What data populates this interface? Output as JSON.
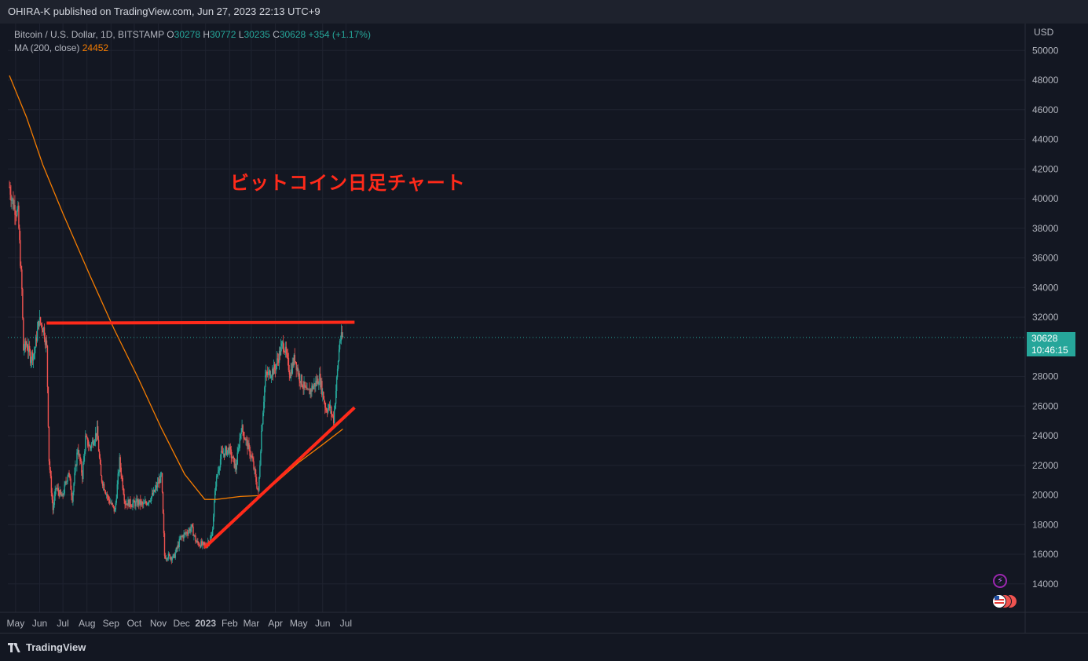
{
  "header": {
    "publisher_line": "OHIRA-K published on TradingView.com, Jun 27, 2023 22:13 UTC+9"
  },
  "legend": {
    "symbol": "Bitcoin / U.S. Dollar, 1D, BITSTAMP",
    "o_label": "O",
    "o_value": "30278",
    "h_label": "H",
    "h_value": "30772",
    "l_label": "L",
    "l_value": "30235",
    "c_label": "C",
    "c_value": "30628",
    "change": "+354 (+1.17%)",
    "ma_label": "MA (200, close)",
    "ma_value": "24452"
  },
  "annotation": {
    "text": "ビットコイン日足チャート",
    "color": "#ff2a1a"
  },
  "price_axis": {
    "currency": "USD",
    "ticks": [
      "50000",
      "48000",
      "46000",
      "44000",
      "42000",
      "40000",
      "38000",
      "36000",
      "34000",
      "32000",
      "28000",
      "26000",
      "24000",
      "22000",
      "20000",
      "18000",
      "16000",
      "14000"
    ],
    "last_price": "30628",
    "countdown": "10:46:15"
  },
  "time_axis": {
    "ticks": [
      "May",
      "Jun",
      "Jul",
      "Aug",
      "Sep",
      "Oct",
      "Nov",
      "Dec",
      "2023",
      "Feb",
      "Mar",
      "Apr",
      "May",
      "Jun",
      "Jul"
    ]
  },
  "footer": {
    "brand": "TradingView"
  },
  "colors": {
    "up": "#26a69a",
    "down": "#ef5350",
    "ma": "#f57c00",
    "trendline": "#ff2a1a",
    "background": "#131722"
  },
  "icons": [
    "bolt-icon",
    "us-flag-icon",
    "tradingview-logo-icon"
  ],
  "chart_data": {
    "type": "candlestick",
    "symbol": "BTCUSD",
    "ylim": [
      12500,
      52000
    ],
    "grid": true,
    "close_path": [
      [
        "2022-04-23",
        40800
      ],
      [
        "2022-04-28",
        39600
      ],
      [
        "2022-05-04",
        39000
      ],
      [
        "2022-05-09",
        33800
      ],
      [
        "2022-05-11",
        29800
      ],
      [
        "2022-05-15",
        30200
      ],
      [
        "2022-05-20",
        29300
      ],
      [
        "2022-05-25",
        29600
      ],
      [
        "2022-05-31",
        31800
      ],
      [
        "2022-06-06",
        31200
      ],
      [
        "2022-06-10",
        29900
      ],
      [
        "2022-06-13",
        22400
      ],
      [
        "2022-06-18",
        19000
      ],
      [
        "2022-06-22",
        20500
      ],
      [
        "2022-06-30",
        19800
      ],
      [
        "2022-07-08",
        21600
      ],
      [
        "2022-07-13",
        19800
      ],
      [
        "2022-07-20",
        23200
      ],
      [
        "2022-07-26",
        21300
      ],
      [
        "2022-07-30",
        23800
      ],
      [
        "2022-08-05",
        23200
      ],
      [
        "2022-08-14",
        24300
      ],
      [
        "2022-08-19",
        21200
      ],
      [
        "2022-08-28",
        19800
      ],
      [
        "2022-09-06",
        18900
      ],
      [
        "2022-09-12",
        22300
      ],
      [
        "2022-09-19",
        19500
      ],
      [
        "2022-09-30",
        19400
      ],
      [
        "2022-10-07",
        19500
      ],
      [
        "2022-10-13",
        19300
      ],
      [
        "2022-10-25",
        20000
      ],
      [
        "2022-11-05",
        21300
      ],
      [
        "2022-11-09",
        15900
      ],
      [
        "2022-11-21",
        15800
      ],
      [
        "2022-11-30",
        17100
      ],
      [
        "2022-12-14",
        17800
      ],
      [
        "2022-12-20",
        16800
      ],
      [
        "2022-12-31",
        16550
      ],
      [
        "2023-01-09",
        17200
      ],
      [
        "2023-01-14",
        20800
      ],
      [
        "2023-01-21",
        22700
      ],
      [
        "2023-01-31",
        23100
      ],
      [
        "2023-02-09",
        21800
      ],
      [
        "2023-02-16",
        24600
      ],
      [
        "2023-03-02",
        22400
      ],
      [
        "2023-03-10",
        20100
      ],
      [
        "2023-03-14",
        24300
      ],
      [
        "2023-03-19",
        28000
      ],
      [
        "2023-03-31",
        28500
      ],
      [
        "2023-04-11",
        30300
      ],
      [
        "2023-04-20",
        28200
      ],
      [
        "2023-04-26",
        29300
      ],
      [
        "2023-05-01",
        28100
      ],
      [
        "2023-05-12",
        26800
      ],
      [
        "2023-05-28",
        27900
      ],
      [
        "2023-06-05",
        25800
      ],
      [
        "2023-06-10",
        25900
      ],
      [
        "2023-06-15",
        25100
      ],
      [
        "2023-06-20",
        28400
      ],
      [
        "2023-06-23",
        30500
      ],
      [
        "2023-06-27",
        30628
      ]
    ],
    "ma_200": [
      [
        "2022-04-23",
        48300
      ],
      [
        "2022-05-15",
        45500
      ],
      [
        "2022-06-05",
        42300
      ],
      [
        "2022-07-01",
        39000
      ],
      [
        "2022-08-05",
        34800
      ],
      [
        "2022-09-05",
        31200
      ],
      [
        "2022-10-05",
        28000
      ],
      [
        "2022-11-05",
        24500
      ],
      [
        "2022-12-05",
        21400
      ],
      [
        "2022-12-31",
        19700
      ],
      [
        "2023-01-15",
        19700
      ],
      [
        "2023-02-15",
        19900
      ],
      [
        "2023-03-10",
        19950
      ],
      [
        "2023-04-01",
        20800
      ],
      [
        "2023-05-01",
        22200
      ],
      [
        "2023-06-01",
        23400
      ],
      [
        "2023-06-27",
        24452
      ]
    ],
    "resistance_line": {
      "price": 31600,
      "from": "2022-06-10",
      "to": "2023-07-02"
    },
    "support_trendline": [
      [
        "2022-12-31",
        16450
      ],
      [
        "2023-07-02",
        25900
      ]
    ]
  }
}
